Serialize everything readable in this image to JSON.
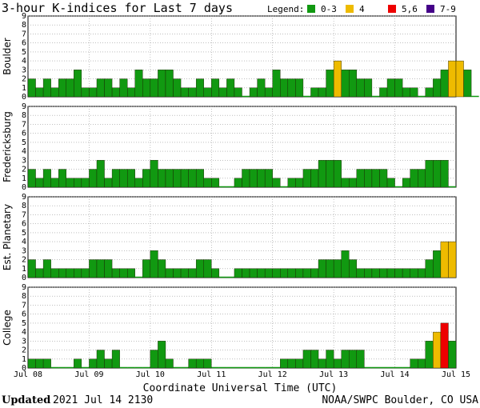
{
  "title": "3-hour K-indices for Last 7 days",
  "legend": {
    "label": "Legend:",
    "items": [
      {
        "label": "0-3",
        "color": "#119911"
      },
      {
        "label": "4",
        "color": "#eebb00"
      },
      {
        "label": "5,6",
        "color": "#ee0000"
      },
      {
        "label": "7-9",
        "color": "#440088"
      }
    ]
  },
  "footer": {
    "updated_label": "Updated",
    "updated_value": "2021 Jul 14 2130",
    "source": "NOAA/SWPC Boulder, CO USA"
  },
  "chart_data": {
    "type": "bar",
    "xlabel": "Coordinate Universal Time (UTC)",
    "ylim": [
      0,
      9
    ],
    "yticks": [
      "0",
      "1",
      "2",
      "3",
      "4",
      "5",
      "6",
      "7",
      "8",
      "9"
    ],
    "x_ticks": [
      "Jul 08",
      "Jul 09",
      "Jul 10",
      "Jul 11",
      "Jul 12",
      "Jul 13",
      "Jul 14",
      "Jul 15"
    ],
    "bins_per_day": 8,
    "color_thresholds": {
      "green_max": 3,
      "yellow": 4,
      "red_max": 6
    },
    "panels": [
      {
        "name": "Boulder",
        "values": [
          2,
          1,
          2,
          1,
          2,
          2,
          3,
          1,
          1,
          2,
          2,
          1,
          2,
          1,
          3,
          2,
          2,
          3,
          3,
          2,
          1,
          1,
          2,
          1,
          2,
          1,
          2,
          1,
          0,
          1,
          2,
          1,
          3,
          2,
          2,
          2,
          0,
          1,
          1,
          3,
          4,
          3,
          3,
          2,
          2,
          0,
          1,
          2,
          2,
          1,
          1,
          0,
          1,
          2,
          3,
          4,
          4,
          3,
          0
        ]
      },
      {
        "name": "Fredericksburg",
        "values": [
          2,
          1,
          2,
          1,
          2,
          1,
          1,
          1,
          2,
          3,
          1,
          2,
          2,
          2,
          1,
          2,
          3,
          2,
          2,
          2,
          2,
          2,
          2,
          1,
          1,
          0,
          0,
          1,
          2,
          2,
          2,
          2,
          1,
          0,
          1,
          1,
          2,
          2,
          3,
          3,
          3,
          1,
          1,
          2,
          2,
          2,
          2,
          1,
          0,
          1,
          2,
          2,
          3,
          3,
          3,
          0
        ]
      },
      {
        "name": "Est. Planetary",
        "values": [
          2,
          1,
          2,
          1,
          1,
          1,
          1,
          1,
          2,
          2,
          2,
          1,
          1,
          1,
          0,
          2,
          3,
          2,
          1,
          1,
          1,
          1,
          2,
          2,
          1,
          0,
          0,
          1,
          1,
          1,
          1,
          1,
          1,
          1,
          1,
          1,
          1,
          1,
          2,
          2,
          2,
          3,
          2,
          1,
          1,
          1,
          1,
          1,
          1,
          1,
          1,
          1,
          2,
          3,
          4,
          4
        ]
      },
      {
        "name": "College",
        "values": [
          1,
          1,
          1,
          0,
          0,
          0,
          1,
          0,
          1,
          2,
          1,
          2,
          0,
          0,
          0,
          0,
          2,
          3,
          1,
          0,
          0,
          1,
          1,
          1,
          0,
          0,
          0,
          0,
          0,
          0,
          0,
          0,
          0,
          1,
          1,
          1,
          2,
          2,
          1,
          2,
          1,
          2,
          2,
          2,
          0,
          0,
          0,
          0,
          0,
          0,
          1,
          1,
          3,
          4,
          5,
          3
        ]
      }
    ]
  }
}
